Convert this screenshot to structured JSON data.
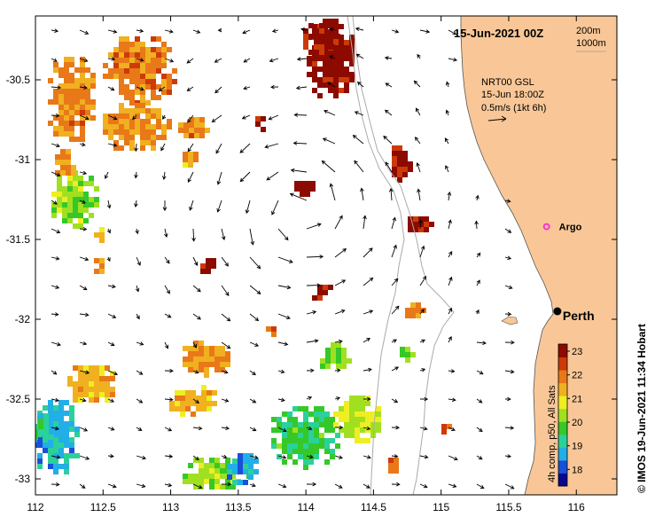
{
  "map": {
    "title": "15-Jun-2021 00Z",
    "contour_legend": [
      "200m",
      "1000m"
    ],
    "current_legend": {
      "line1": "NRT00 GSL",
      "line2": "15-Jun 18:00Z",
      "line3": "0.5m/s (1kt 6h)"
    },
    "places": [
      {
        "name": "Argo",
        "lon": 115.78,
        "lat": -31.42,
        "color": "#ff33cc"
      },
      {
        "name": "Perth",
        "lon": 115.86,
        "lat": -31.95,
        "color": "#000000"
      }
    ],
    "x_ticks": [
      "112",
      "112.5",
      "113",
      "113.5",
      "114",
      "114.5",
      "115",
      "115.5",
      "116"
    ],
    "y_ticks": [
      "-30.5",
      "-31",
      "-31.5",
      "-32",
      "-32.5",
      "-33"
    ],
    "extent": {
      "lon": [
        112,
        116.3
      ],
      "lat": [
        -33.1,
        -30.1
      ]
    },
    "colorbar": {
      "ticks": [
        "23",
        "22",
        "21",
        "20",
        "19",
        "18"
      ],
      "range": [
        17.3,
        23.3
      ],
      "label": "4h comp, p50, All Sats",
      "colors": [
        "#08088c",
        "#1a4fd9",
        "#22aee6",
        "#2bd19a",
        "#35c828",
        "#a0e020",
        "#eeee22",
        "#f0b020",
        "#e87818",
        "#cc3a08",
        "#8c0a00"
      ]
    },
    "credit": "© IMOS 19-Jun-2021 11:34 Hobart"
  }
}
